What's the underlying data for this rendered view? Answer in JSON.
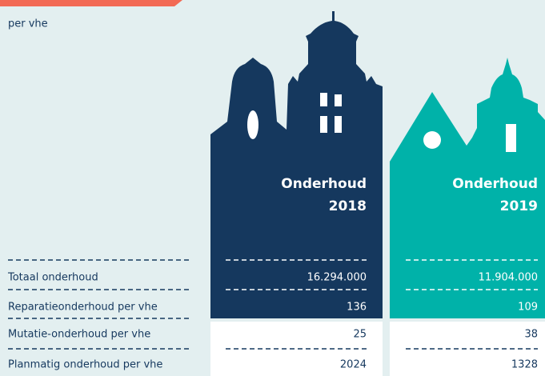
{
  "subtitle": "per vhe",
  "table": {
    "columns": [
      {
        "label": "Onderhoud",
        "year": "2018"
      },
      {
        "label": "Onderhoud",
        "year": "2019"
      }
    ],
    "rows": [
      [
        "Totaal onderhoud",
        "16.294.000",
        "11.904.000"
      ],
      [
        "Reparatieonderhoud per vhe",
        "136",
        "109"
      ],
      [
        "Mutatie-onderhoud per vhe",
        "25",
        "38"
      ],
      [
        "Planmatig onderhoud per vhe",
        "2024",
        "1328"
      ]
    ]
  }
}
